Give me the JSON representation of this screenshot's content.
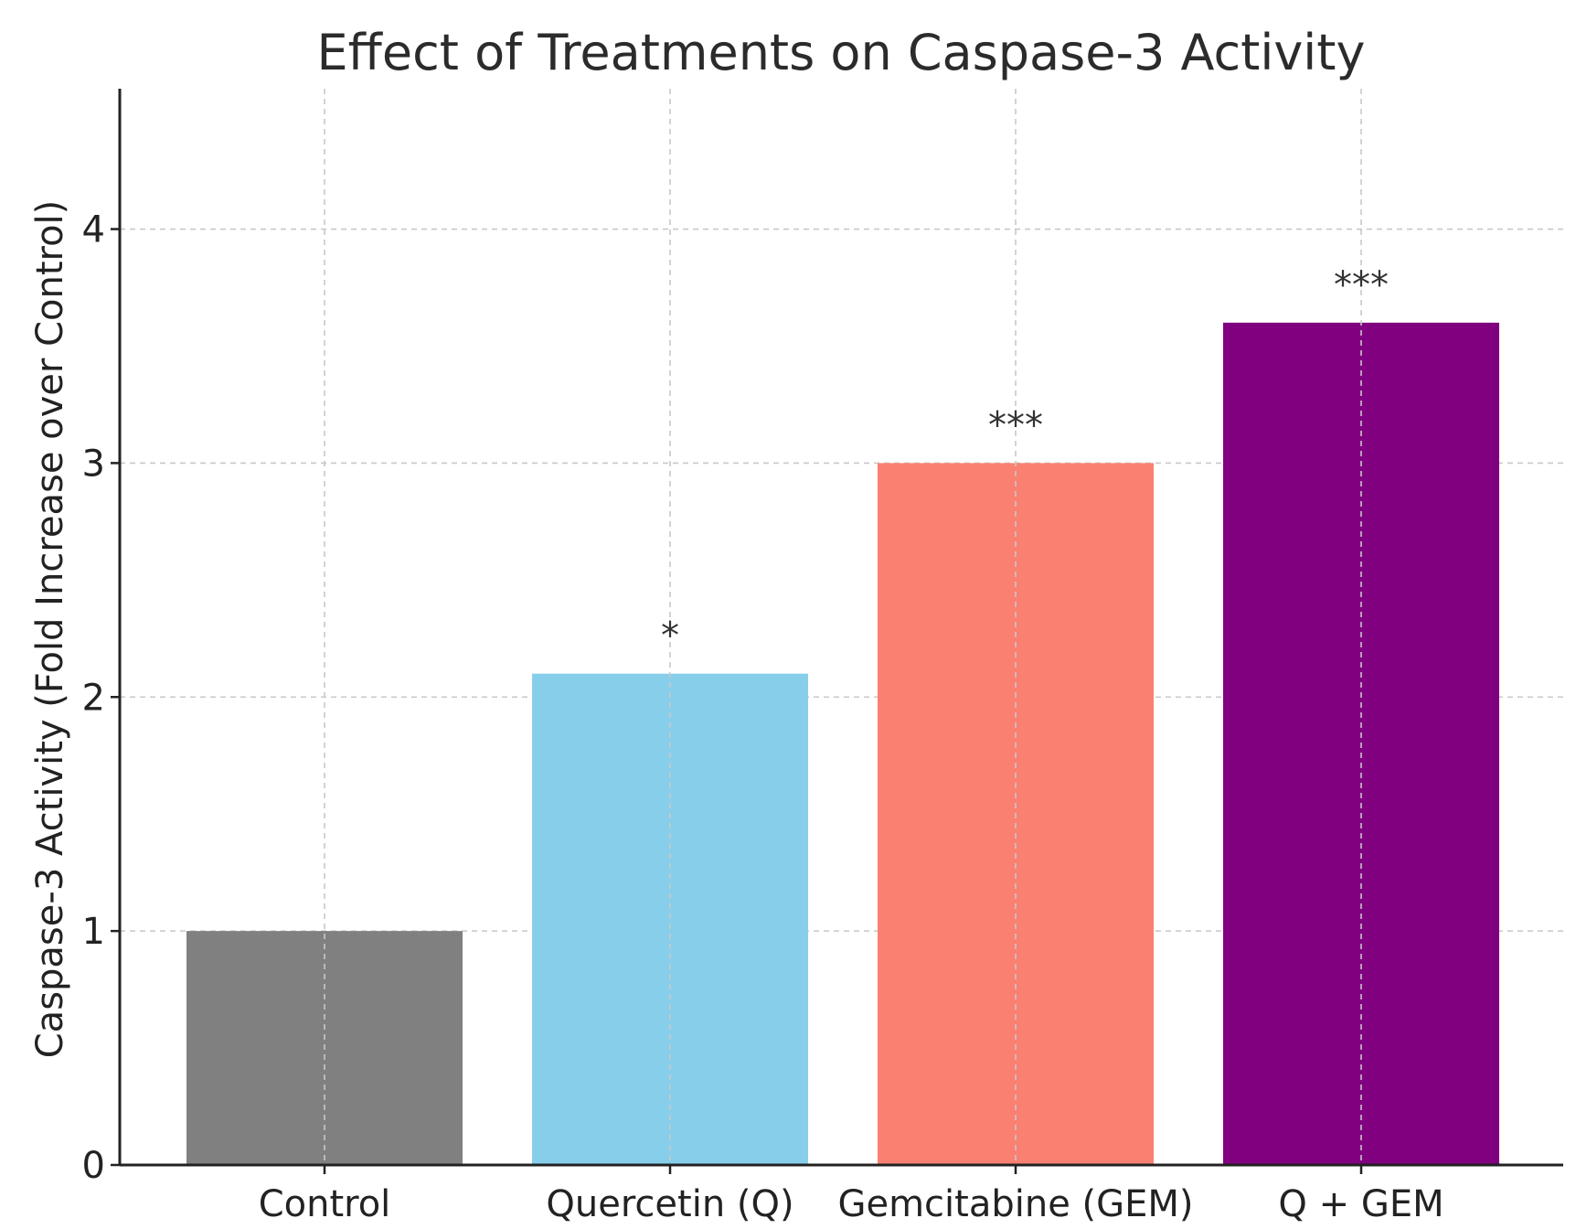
{
  "chart_data": {
    "type": "bar",
    "title": "Effect of Treatments on Caspase-3 Activity",
    "xlabel": "",
    "ylabel": "Caspase-3 Activity (Fold Increase over Control)",
    "categories": [
      "Control",
      "Quercetin (Q)",
      "Gemcitabine (GEM)",
      "Q + GEM"
    ],
    "values": [
      1.0,
      2.1,
      3.0,
      3.6
    ],
    "colors": [
      "#808080",
      "#87CEEB",
      "#FA8072",
      "#800080"
    ],
    "annotations": [
      "",
      "*",
      "***",
      "***"
    ],
    "ylim": [
      0,
      4.6
    ],
    "yticks": [
      0,
      1,
      2,
      3,
      4
    ],
    "grid": true
  }
}
